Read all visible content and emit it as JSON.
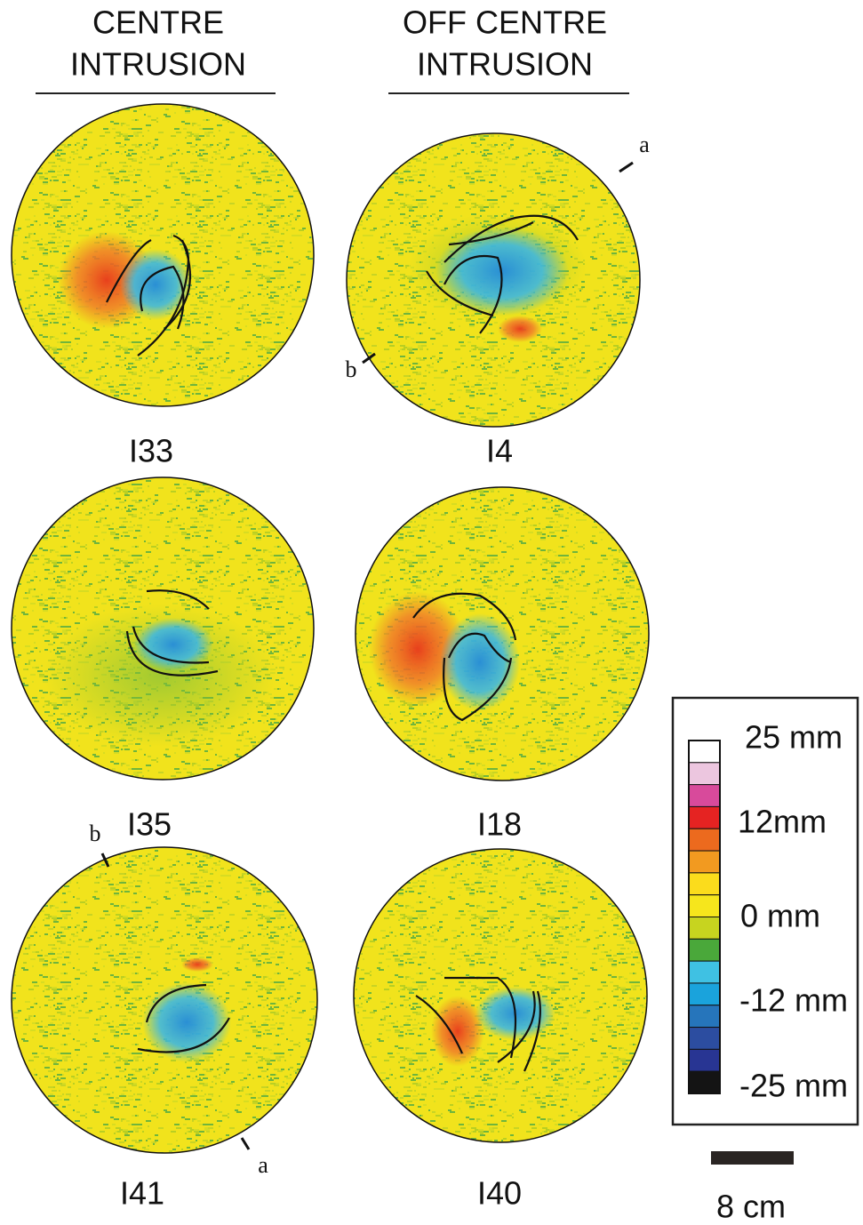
{
  "columns": [
    {
      "title_line1": "CENTRE",
      "title_line2": "INTRUSION"
    },
    {
      "title_line1": "OFF CENTRE",
      "title_line2": "INTRUSION"
    }
  ],
  "panels": [
    {
      "label": "I33"
    },
    {
      "label": "I4",
      "markers": [
        "a",
        "b"
      ]
    },
    {
      "label": "I35"
    },
    {
      "label": "I18"
    },
    {
      "label": "I41",
      "markers": [
        "b",
        "a"
      ]
    },
    {
      "label": "I40"
    }
  ],
  "legend": {
    "labels": [
      "25 mm",
      "12mm",
      "0 mm",
      "-12 mm",
      "-25 mm"
    ]
  },
  "scale_bar": {
    "label": "8 cm"
  }
}
